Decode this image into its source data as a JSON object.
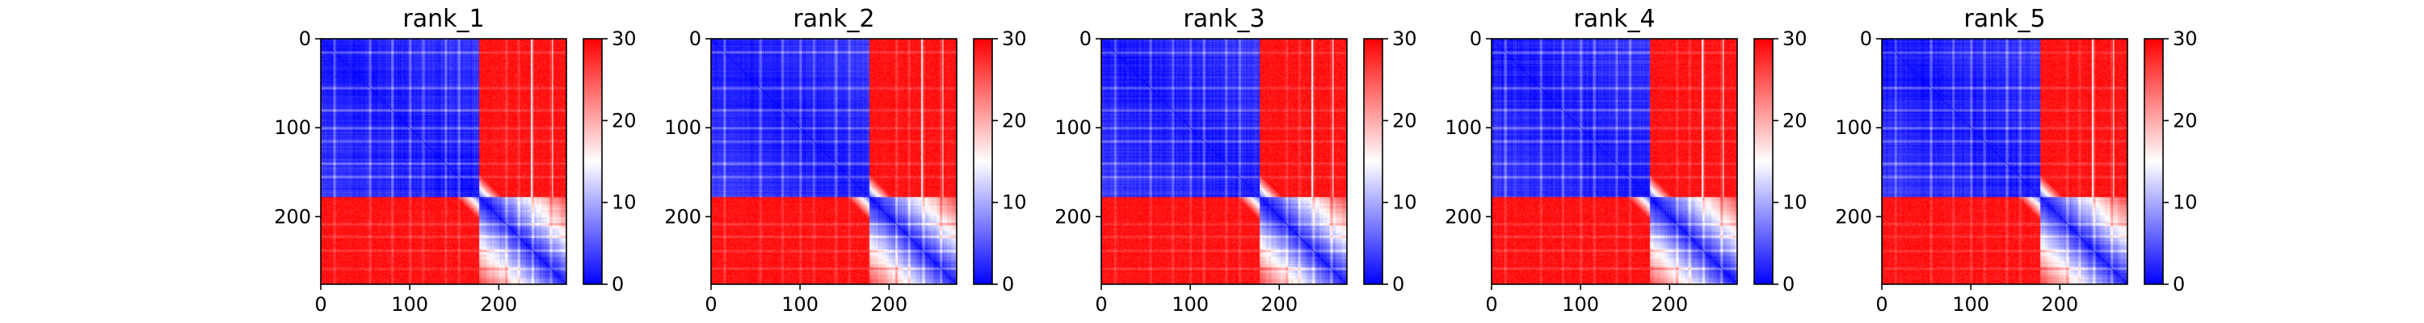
{
  "chart_data": [
    {
      "type": "heatmap",
      "title": "rank_1",
      "x_ticks": [
        0,
        100,
        200
      ],
      "y_ticks": [
        0,
        100,
        200
      ],
      "xlim": [
        0,
        276
      ],
      "ylim": [
        276,
        0
      ],
      "colorbar": {
        "range": [
          0,
          30
        ],
        "ticks": [
          0,
          10,
          20,
          30
        ],
        "colormap": "bwr"
      },
      "n": 276,
      "split": 178
    },
    {
      "type": "heatmap",
      "title": "rank_2",
      "x_ticks": [
        0,
        100,
        200
      ],
      "y_ticks": [
        0,
        100,
        200
      ],
      "xlim": [
        0,
        276
      ],
      "ylim": [
        276,
        0
      ],
      "colorbar": {
        "range": [
          0,
          30
        ],
        "ticks": [
          0,
          10,
          20,
          30
        ],
        "colormap": "bwr"
      },
      "n": 276,
      "split": 178
    },
    {
      "type": "heatmap",
      "title": "rank_3",
      "x_ticks": [
        0,
        100,
        200
      ],
      "y_ticks": [
        0,
        100,
        200
      ],
      "xlim": [
        0,
        276
      ],
      "ylim": [
        276,
        0
      ],
      "colorbar": {
        "range": [
          0,
          30
        ],
        "ticks": [
          0,
          10,
          20,
          30
        ],
        "colormap": "bwr"
      },
      "n": 276,
      "split": 178
    },
    {
      "type": "heatmap",
      "title": "rank_4",
      "x_ticks": [
        0,
        100,
        200
      ],
      "y_ticks": [
        0,
        100,
        200
      ],
      "xlim": [
        0,
        276
      ],
      "ylim": [
        276,
        0
      ],
      "colorbar": {
        "range": [
          0,
          30
        ],
        "ticks": [
          0,
          10,
          20,
          30
        ],
        "colormap": "bwr"
      },
      "n": 276,
      "split": 178
    },
    {
      "type": "heatmap",
      "title": "rank_5",
      "x_ticks": [
        0,
        100,
        200
      ],
      "y_ticks": [
        0,
        100,
        200
      ],
      "xlim": [
        0,
        276
      ],
      "ylim": [
        276,
        0
      ],
      "colorbar": {
        "range": [
          0,
          30
        ],
        "ticks": [
          0,
          10,
          20,
          30
        ],
        "colormap": "bwr"
      },
      "n": 276,
      "split": 178
    }
  ]
}
